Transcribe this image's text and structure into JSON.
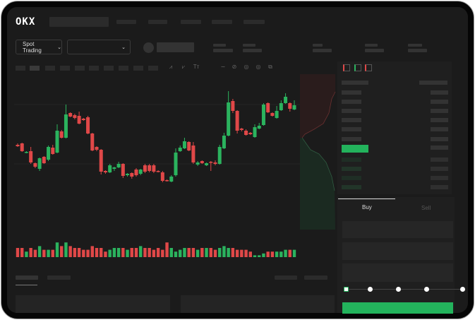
{
  "brand": {
    "logo": "OKX"
  },
  "header": {
    "market_selector": {
      "label": "Spot Trading"
    }
  },
  "order_form": {
    "tabs": [
      {
        "label": "Buy",
        "active": true
      },
      {
        "label": "Sell",
        "active": false
      }
    ],
    "slider_percent": 0,
    "slider_steps": [
      0,
      25,
      50,
      75,
      100
    ]
  },
  "colors": {
    "up": "#2bb35e",
    "down": "#e04848",
    "background": "#1b1b1b",
    "placeholder": "#2b2b2b"
  },
  "icons": [
    "chevron-down-icon",
    "orderbook-both-icon",
    "orderbook-bids-icon",
    "orderbook-asks-icon",
    "indicator-icon",
    "line-icon",
    "pen-icon",
    "circle-icon",
    "settings-icon",
    "fullscreen-icon"
  ],
  "chart_data": {
    "type": "candlestick",
    "candles": [
      [
        95,
        93,
        97,
        92
      ],
      [
        97,
        86,
        98,
        85
      ],
      [
        84,
        85,
        86,
        83
      ],
      [
        86,
        70,
        92,
        68
      ],
      [
        69,
        64,
        70,
        62
      ],
      [
        61,
        76,
        77,
        58
      ],
      [
        78,
        69,
        79,
        68
      ],
      [
        74,
        92,
        94,
        72
      ],
      [
        91,
        82,
        95,
        81
      ],
      [
        84,
        115,
        124,
        83
      ],
      [
        114,
        105,
        116,
        104
      ],
      [
        105,
        138,
        152,
        104
      ],
      [
        140,
        135,
        141,
        134
      ],
      [
        137,
        133,
        139,
        131
      ],
      [
        136,
        125,
        142,
        124
      ],
      [
        132,
        130,
        133,
        129
      ],
      [
        134,
        111,
        136,
        110
      ],
      [
        111,
        87,
        112,
        86
      ],
      [
        92,
        88,
        93,
        86
      ],
      [
        88,
        57,
        89,
        53
      ],
      [
        58,
        56,
        59,
        54
      ],
      [
        56,
        66,
        68,
        55
      ],
      [
        61,
        63,
        64,
        58
      ],
      [
        63,
        68,
        71,
        62
      ],
      [
        68,
        51,
        69,
        48
      ],
      [
        52,
        54,
        55,
        50
      ],
      [
        55,
        50,
        56,
        47
      ],
      [
        60,
        52,
        62,
        50
      ],
      [
        54,
        60,
        61,
        52
      ],
      [
        66,
        57,
        68,
        55
      ],
      [
        66,
        58,
        68,
        56
      ],
      [
        66,
        57,
        68,
        55
      ],
      [
        58,
        57,
        59,
        56
      ],
      [
        56,
        44,
        58,
        42
      ],
      [
        45,
        44,
        46,
        43
      ],
      [
        43,
        50,
        52,
        42
      ],
      [
        52,
        84,
        90,
        50
      ],
      [
        86,
        91,
        94,
        85
      ],
      [
        90,
        100,
        105,
        89
      ],
      [
        99,
        87,
        100,
        86
      ],
      [
        94,
        70,
        99,
        68
      ],
      [
        67,
        70,
        72,
        65
      ],
      [
        72,
        69,
        73,
        68
      ],
      [
        66,
        69,
        70,
        65
      ],
      [
        71,
        70,
        72,
        58
      ],
      [
        70,
        68,
        73,
        66
      ],
      [
        68,
        92,
        95,
        67
      ],
      [
        90,
        108,
        112,
        89
      ],
      [
        108,
        155,
        171,
        107
      ],
      [
        157,
        143,
        160,
        140
      ],
      [
        143,
        115,
        144,
        111
      ],
      [
        118,
        116,
        119,
        114
      ],
      [
        115,
        109,
        117,
        108
      ],
      [
        112,
        110,
        113,
        109
      ],
      [
        106,
        120,
        124,
        105
      ],
      [
        118,
        122,
        126,
        117
      ],
      [
        123,
        152,
        154,
        122
      ],
      [
        154,
        141,
        155,
        140
      ],
      [
        140,
        136,
        141,
        135
      ],
      [
        133,
        143,
        150,
        132
      ],
      [
        144,
        154,
        158,
        143
      ],
      [
        154,
        163,
        168,
        153
      ],
      [
        154,
        146,
        155,
        142
      ],
      [
        145,
        151,
        158,
        144
      ]
    ],
    "volume": [
      5,
      5,
      3,
      5,
      4,
      6,
      4,
      4,
      4,
      8,
      6,
      8,
      6,
      5,
      5,
      4,
      4,
      6,
      5,
      5,
      3,
      4,
      5,
      5,
      5,
      4,
      5,
      5,
      6,
      5,
      5,
      4,
      5,
      4,
      8,
      5,
      3,
      4,
      5,
      5,
      5,
      4,
      5,
      5,
      5,
      4,
      5,
      6,
      5,
      5,
      4,
      4,
      4,
      3,
      1,
      1,
      2,
      3,
      3,
      3,
      3,
      4,
      4,
      4
    ]
  }
}
